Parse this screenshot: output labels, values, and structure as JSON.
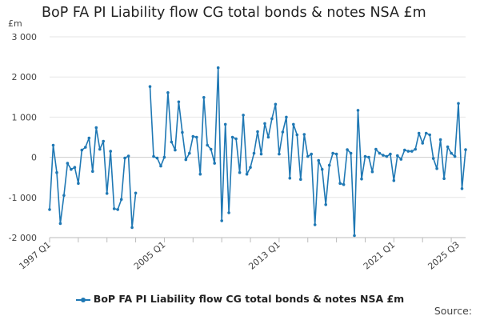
{
  "chart_data": {
    "type": "line",
    "title": "BoP FA PI Liability flow CG total bonds & notes NSA £m",
    "ylabel": "£m",
    "xlabel": "",
    "ylim": [
      -2000,
      3000
    ],
    "yticks": [
      3000,
      2000,
      1000,
      0,
      -1000,
      -2000
    ],
    "ytick_labels": [
      "3 000",
      "2 000",
      "1 000",
      "0",
      "-1 000",
      "-2 000"
    ],
    "xtick_labels": [
      "1997 Q1",
      "2005 Q1",
      "2013 Q1",
      "2021 Q1",
      "2025 Q3"
    ],
    "xtick_indices": [
      0,
      32,
      64,
      96,
      114
    ],
    "color": "#1f78b4",
    "series": [
      {
        "name": "BoP FA PI Liability flow CG total bonds & notes NSA £m",
        "start": "1997 Q1",
        "values": [
          -1300,
          300,
          -380,
          -1650,
          -950,
          -150,
          -300,
          -250,
          -650,
          180,
          250,
          480,
          -350,
          740,
          200,
          400,
          -900,
          150,
          -1280,
          -1300,
          -1050,
          -20,
          30,
          -1750,
          -890,
          null,
          null,
          null,
          1760,
          20,
          -20,
          -220,
          0,
          1610,
          380,
          180,
          1380,
          620,
          -60,
          100,
          520,
          500,
          -420,
          1490,
          300,
          200,
          -150,
          2230,
          -1580,
          820,
          -1380,
          500,
          460,
          -380,
          1050,
          -420,
          -250,
          100,
          640,
          80,
          840,
          500,
          960,
          1320,
          80,
          630,
          1000,
          -520,
          820,
          560,
          -550,
          570,
          20,
          80,
          -1680,
          -80,
          -300,
          -1180,
          -200,
          100,
          80,
          -650,
          -680,
          190,
          100,
          -1950,
          1170,
          -540,
          20,
          0,
          -360,
          200,
          100,
          50,
          20,
          80,
          -580,
          40,
          -50,
          180,
          150,
          150,
          200,
          600,
          350,
          600,
          560,
          -30,
          -280,
          440,
          -530,
          260,
          100,
          20,
          1340,
          -780,
          190
        ]
      }
    ]
  },
  "legend": {
    "label": "BoP FA PI Liability flow CG total bonds & notes NSA £m"
  },
  "source": {
    "label": "Source:"
  }
}
